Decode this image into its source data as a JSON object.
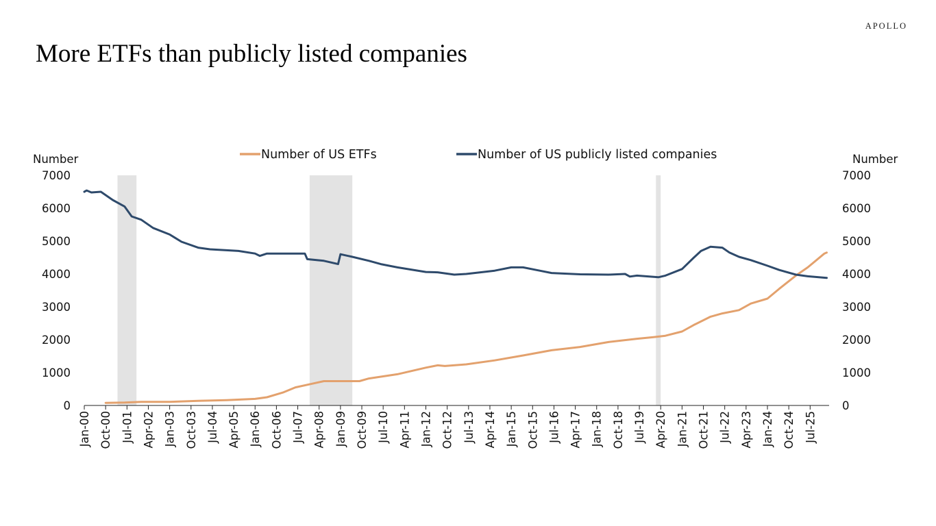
{
  "brand": "APOLLO",
  "title": "More ETFs than publicly listed companies",
  "chart_data": {
    "type": "line",
    "x_unit": "month",
    "x_start": "2000-01",
    "x_end": "2026-03",
    "ylabel_left": "Number",
    "ylabel_right": "Number",
    "ylim": [
      0,
      7000
    ],
    "yticks": [
      0,
      1000,
      2000,
      3000,
      4000,
      5000,
      6000,
      7000
    ],
    "xtick_labels": [
      "Jan-00",
      "Oct-00",
      "Jul-01",
      "Apr-02",
      "Jan-03",
      "Oct-03",
      "Jul-04",
      "Apr-05",
      "Jan-06",
      "Oct-06",
      "Jul-07",
      "Apr-08",
      "Jan-09",
      "Oct-09",
      "Jul-10",
      "Apr-11",
      "Jan-12",
      "Oct-12",
      "Jul-13",
      "Apr-14",
      "Jan-15",
      "Oct-15",
      "Jul-16",
      "Apr-17",
      "Jan-18",
      "Oct-18",
      "Jul-19",
      "Apr-20",
      "Jan-21",
      "Oct-21",
      "Jul-22",
      "Apr-23",
      "Jan-24",
      "Oct-24",
      "Jul-25"
    ],
    "grid": false,
    "legend_position": "top-center",
    "recessions": [
      {
        "start": "2001-03",
        "end": "2001-11"
      },
      {
        "start": "2007-12",
        "end": "2009-06"
      },
      {
        "start": "2020-02",
        "end": "2020-04"
      }
    ],
    "series": [
      {
        "name": "Number of US ETFs",
        "color": "#e3a16d",
        "points": [
          [
            "2000-10",
            80
          ],
          [
            "2001-06",
            90
          ],
          [
            "2002-01",
            110
          ],
          [
            "2003-01",
            110
          ],
          [
            "2004-01",
            140
          ],
          [
            "2005-01",
            160
          ],
          [
            "2006-01",
            200
          ],
          [
            "2006-06",
            250
          ],
          [
            "2007-01",
            400
          ],
          [
            "2007-06",
            550
          ],
          [
            "2008-01",
            660
          ],
          [
            "2008-06",
            740
          ],
          [
            "2009-01",
            740
          ],
          [
            "2009-09",
            740
          ],
          [
            "2010-01",
            820
          ],
          [
            "2011-01",
            950
          ],
          [
            "2012-01",
            1150
          ],
          [
            "2012-06",
            1220
          ],
          [
            "2012-09",
            1200
          ],
          [
            "2013-06",
            1250
          ],
          [
            "2014-06",
            1370
          ],
          [
            "2015-06",
            1520
          ],
          [
            "2016-06",
            1680
          ],
          [
            "2017-06",
            1780
          ],
          [
            "2018-06",
            1930
          ],
          [
            "2019-06",
            2030
          ],
          [
            "2020-01",
            2080
          ],
          [
            "2020-06",
            2120
          ],
          [
            "2021-01",
            2250
          ],
          [
            "2021-06",
            2450
          ],
          [
            "2022-01",
            2700
          ],
          [
            "2022-06",
            2800
          ],
          [
            "2023-01",
            2900
          ],
          [
            "2023-06",
            3100
          ],
          [
            "2024-01",
            3250
          ],
          [
            "2024-06",
            3550
          ],
          [
            "2025-01",
            3950
          ],
          [
            "2025-06",
            4200
          ],
          [
            "2026-01",
            4620
          ],
          [
            "2026-02",
            4650
          ]
        ]
      },
      {
        "name": "Number of US publicly listed companies",
        "color": "#2e4a6b",
        "points": [
          [
            "2000-01",
            6500
          ],
          [
            "2000-02",
            6540
          ],
          [
            "2000-04",
            6480
          ],
          [
            "2000-08",
            6500
          ],
          [
            "2001-01",
            6250
          ],
          [
            "2001-06",
            6050
          ],
          [
            "2001-09",
            5750
          ],
          [
            "2002-01",
            5650
          ],
          [
            "2002-06",
            5400
          ],
          [
            "2003-01",
            5200
          ],
          [
            "2003-06",
            4980
          ],
          [
            "2004-01",
            4800
          ],
          [
            "2004-06",
            4750
          ],
          [
            "2005-01",
            4720
          ],
          [
            "2005-06",
            4700
          ],
          [
            "2006-01",
            4620
          ],
          [
            "2006-03",
            4550
          ],
          [
            "2006-06",
            4620
          ],
          [
            "2007-01",
            4620
          ],
          [
            "2007-10",
            4620
          ],
          [
            "2007-11",
            4450
          ],
          [
            "2008-06",
            4400
          ],
          [
            "2008-12",
            4300
          ],
          [
            "2009-01",
            4600
          ],
          [
            "2009-06",
            4520
          ],
          [
            "2010-01",
            4400
          ],
          [
            "2010-06",
            4300
          ],
          [
            "2011-01",
            4200
          ],
          [
            "2012-01",
            4060
          ],
          [
            "2012-06",
            4050
          ],
          [
            "2013-01",
            3980
          ],
          [
            "2013-06",
            4000
          ],
          [
            "2014-06",
            4100
          ],
          [
            "2015-01",
            4200
          ],
          [
            "2015-06",
            4200
          ],
          [
            "2016-01",
            4100
          ],
          [
            "2016-06",
            4030
          ],
          [
            "2017-06",
            3990
          ],
          [
            "2018-06",
            3980
          ],
          [
            "2019-01",
            4000
          ],
          [
            "2019-03",
            3920
          ],
          [
            "2019-06",
            3950
          ],
          [
            "2020-03",
            3900
          ],
          [
            "2020-06",
            3950
          ],
          [
            "2021-01",
            4150
          ],
          [
            "2021-06",
            4500
          ],
          [
            "2021-09",
            4700
          ],
          [
            "2022-01",
            4830
          ],
          [
            "2022-06",
            4800
          ],
          [
            "2022-09",
            4650
          ],
          [
            "2023-01",
            4520
          ],
          [
            "2023-06",
            4420
          ],
          [
            "2024-01",
            4250
          ],
          [
            "2024-06",
            4120
          ],
          [
            "2025-01",
            3980
          ],
          [
            "2025-06",
            3930
          ],
          [
            "2026-02",
            3880
          ]
        ]
      }
    ]
  }
}
